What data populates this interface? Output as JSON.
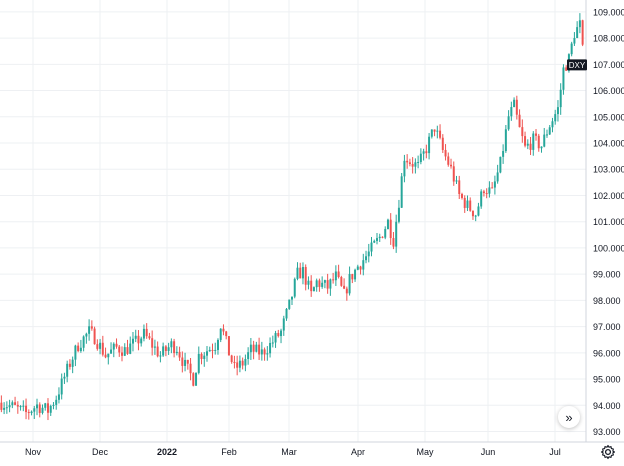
{
  "chart_data": {
    "type": "candlestick",
    "symbol": "DXY",
    "last_price": 107.0,
    "ylim": [
      92.6,
      109.3
    ],
    "y_ticks": [
      "93.000",
      "94.000",
      "95.000",
      "96.000",
      "97.000",
      "98.000",
      "99.000",
      "100.000",
      "101.000",
      "102.000",
      "103.000",
      "104.000",
      "105.000",
      "106.000",
      "107.000",
      "108.000",
      "109.000"
    ],
    "x_ticks": [
      "Nov",
      "Dec",
      "2022",
      "Feb",
      "Mar",
      "Apr",
      "May",
      "Jun",
      "Jul"
    ],
    "up_color": "#26a69a",
    "down_color": "#ef5350",
    "grid": true,
    "price_path": [
      [
        0,
        94.1
      ],
      [
        5,
        93.9
      ],
      [
        9,
        93.7
      ],
      [
        13,
        94.0
      ],
      [
        17,
        93.8
      ],
      [
        20,
        94.3
      ],
      [
        25,
        95.6
      ],
      [
        28,
        96.3
      ],
      [
        32,
        96.8
      ],
      [
        34,
        96.6
      ],
      [
        38,
        95.9
      ],
      [
        42,
        96.2
      ],
      [
        45,
        96.1
      ],
      [
        49,
        96.4
      ],
      [
        52,
        96.7
      ],
      [
        55,
        96.3
      ],
      [
        58,
        95.9
      ],
      [
        62,
        96.3
      ],
      [
        64,
        96.2
      ],
      [
        67,
        95.5
      ],
      [
        70,
        95.0
      ],
      [
        72,
        95.9
      ],
      [
        75,
        96.1
      ],
      [
        78,
        96.3
      ],
      [
        80,
        97.1
      ],
      [
        83,
        96.0
      ],
      [
        85,
        95.4
      ],
      [
        88,
        95.6
      ],
      [
        91,
        96.1
      ],
      [
        95,
        96.0
      ],
      [
        98,
        96.3
      ],
      [
        102,
        96.8
      ],
      [
        105,
        97.8
      ],
      [
        108,
        99.0
      ],
      [
        110,
        99.1
      ],
      [
        113,
        98.2
      ],
      [
        115,
        98.7
      ],
      [
        119,
        98.5
      ],
      [
        122,
        98.9
      ],
      [
        125,
        98.2
      ],
      [
        127,
        98.8
      ],
      [
        130,
        99.3
      ],
      [
        134,
        99.8
      ],
      [
        138,
        100.4
      ],
      [
        141,
        101.0
      ],
      [
        143,
        100.3
      ],
      [
        145,
        101.8
      ],
      [
        147,
        103.5
      ],
      [
        149,
        103.3
      ],
      [
        152,
        103.1
      ],
      [
        155,
        103.8
      ],
      [
        158,
        104.6
      ],
      [
        161,
        103.7
      ],
      [
        164,
        103.0
      ],
      [
        167,
        102.0
      ],
      [
        170,
        101.6
      ],
      [
        173,
        101.3
      ],
      [
        176,
        102.3
      ],
      [
        179,
        102.1
      ],
      [
        182,
        103.2
      ],
      [
        185,
        105.0
      ],
      [
        187,
        105.4
      ],
      [
        189,
        104.5
      ],
      [
        191,
        103.8
      ],
      [
        194,
        104.1
      ],
      [
        197,
        103.9
      ],
      [
        200,
        104.7
      ],
      [
        203,
        105.3
      ],
      [
        205,
        106.8
      ],
      [
        207,
        107.2
      ],
      [
        209,
        108.2
      ],
      [
        211,
        108.5
      ],
      [
        212,
        107.5
      ]
    ],
    "n_bars": 213
  }
}
